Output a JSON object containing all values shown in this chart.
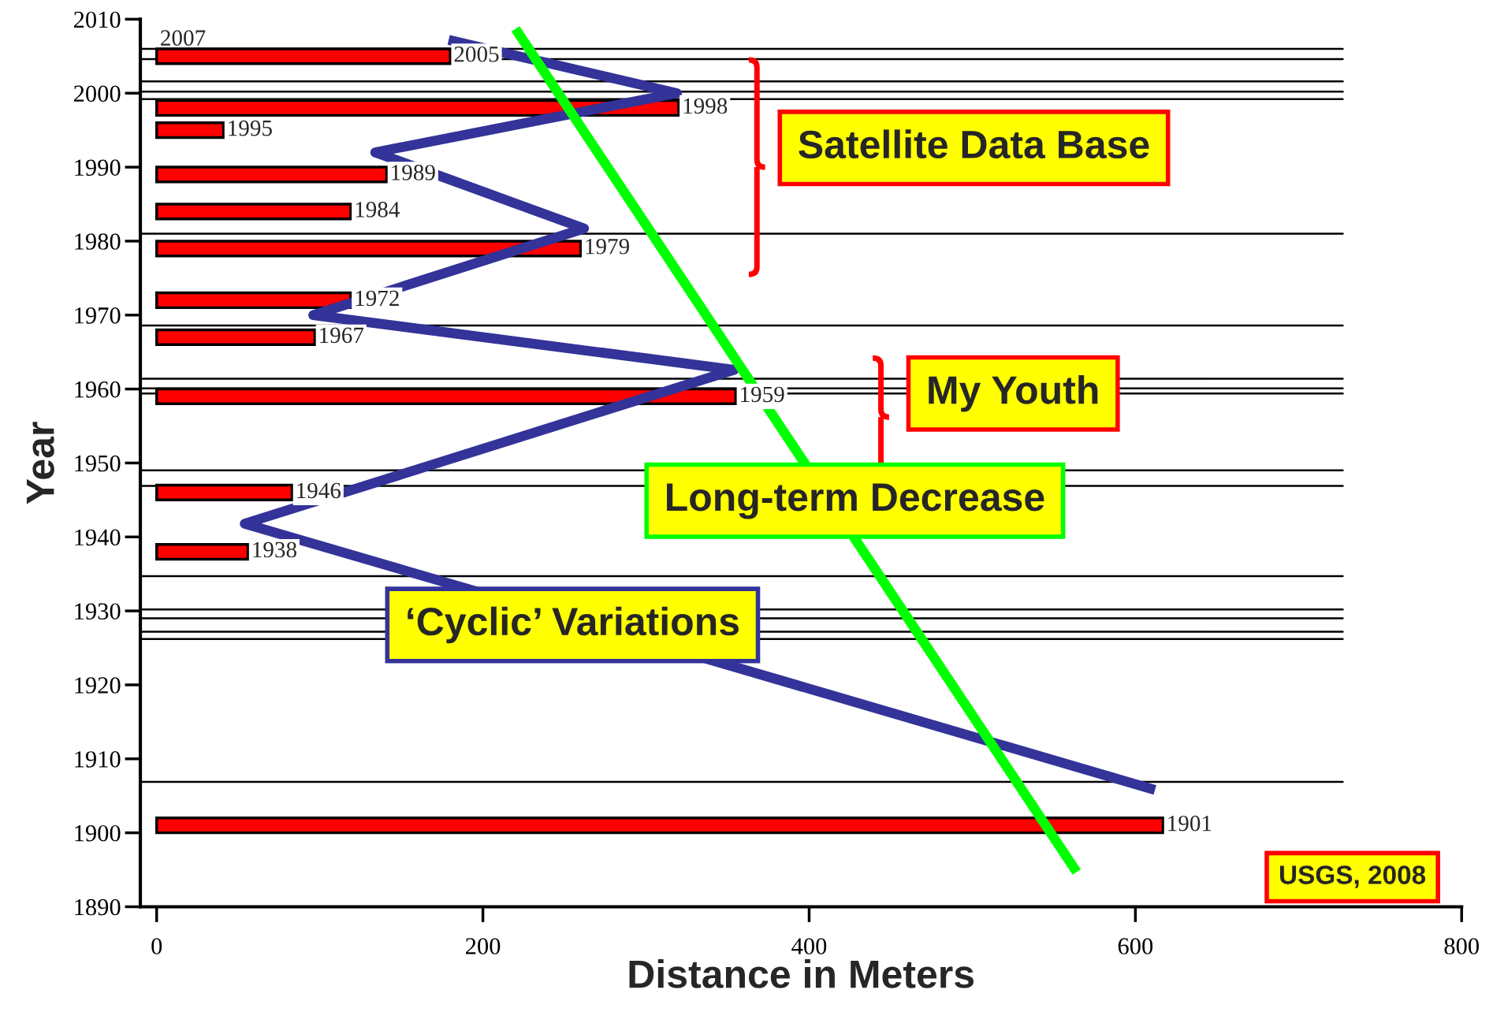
{
  "chart_data": {
    "type": "bar",
    "orientation": "horizontal",
    "xlabel": "Distance in Meters",
    "ylabel": "Year",
    "xlim": [
      -10,
      800
    ],
    "ylim": [
      1890,
      2010
    ],
    "xticks": [
      0,
      200,
      400,
      600,
      800
    ],
    "yticks": [
      1890,
      1900,
      1910,
      1920,
      1930,
      1940,
      1950,
      1960,
      1970,
      1980,
      1990,
      2000,
      2010
    ],
    "grid": false,
    "legend": false,
    "series": [
      {
        "color": "#ff0000",
        "x": [
          2005,
          1998,
          1995,
          1989,
          1984,
          1979,
          1972,
          1967,
          1959,
          1946,
          1938,
          1901
        ],
        "values": [
          180,
          320,
          41,
          141,
          119,
          260,
          119,
          97,
          355,
          83,
          56,
          617
        ]
      },
      {
        "type": "line",
        "color": "#333399",
        "x": [
          2007.2,
          2000,
          1992,
          1981.7,
          1970,
          1962.6,
          1941.8,
          1905.8
        ],
        "values": [
          179,
          319,
          134,
          262,
          96,
          354,
          54,
          612
        ]
      },
      {
        "type": "line",
        "color": "#00ff00",
        "x": [
          2008.7,
          1894.7
        ],
        "values": [
          220,
          564
        ]
      }
    ],
    "ref_lines": [
      {
        "axis": "y",
        "value": 2006,
        "color": "#000000"
      },
      {
        "axis": "y",
        "value": 2004.6,
        "color": "#000000"
      },
      {
        "axis": "y",
        "value": 2001.6,
        "color": "#000000"
      },
      {
        "axis": "y",
        "value": 2000.2,
        "color": "#000000"
      },
      {
        "axis": "y",
        "value": 1999.2,
        "color": "#000000"
      },
      {
        "axis": "y",
        "value": 1981,
        "color": "#000000"
      },
      {
        "axis": "y",
        "value": 1968.6,
        "color": "#000000"
      },
      {
        "axis": "y",
        "value": 1961.4,
        "color": "#000000"
      },
      {
        "axis": "y",
        "value": 1960.1,
        "color": "#000000"
      },
      {
        "axis": "y",
        "value": 1959.4,
        "color": "#000000"
      },
      {
        "axis": "y",
        "value": 1949,
        "color": "#000000"
      },
      {
        "axis": "y",
        "value": 1946.9,
        "color": "#000000"
      },
      {
        "axis": "y",
        "value": 1934.7,
        "color": "#000000"
      },
      {
        "axis": "y",
        "value": 1930.2,
        "color": "#000000"
      },
      {
        "axis": "y",
        "value": 1929,
        "color": "#000000"
      },
      {
        "axis": "y",
        "value": 1927.2,
        "color": "#000000"
      },
      {
        "axis": "y",
        "value": 1926.2,
        "color": "#000000"
      },
      {
        "axis": "y",
        "value": 1906.9,
        "color": "#000000"
      }
    ],
    "annotations": [
      "2007",
      {
        "text": "2005",
        "x": 180,
        "y": 2005
      },
      {
        "text": "1998",
        "x": 320,
        "y": 1998
      },
      {
        "text": "1995",
        "x": 41,
        "y": 1995
      },
      {
        "text": "1989",
        "x": 141,
        "y": 1989
      },
      {
        "text": "1984",
        "x": 119,
        "y": 1984
      },
      {
        "text": "1979",
        "x": 260,
        "y": 1979
      },
      {
        "text": "1972",
        "x": 119,
        "y": 1972
      },
      {
        "text": "1967",
        "x": 97,
        "y": 1967
      },
      {
        "text": "1959",
        "x": 355,
        "y": 1959
      },
      {
        "text": "1946",
        "x": 83,
        "y": 1946
      },
      {
        "text": "1938",
        "x": 56,
        "y": 1938
      },
      {
        "text": "1901",
        "x": 617,
        "y": 1901
      },
      "Satellite Data Base",
      "My Youth",
      "Long-term Decrease",
      "‘Cyclic’ Variations",
      "USGS, 2008"
    ]
  }
}
